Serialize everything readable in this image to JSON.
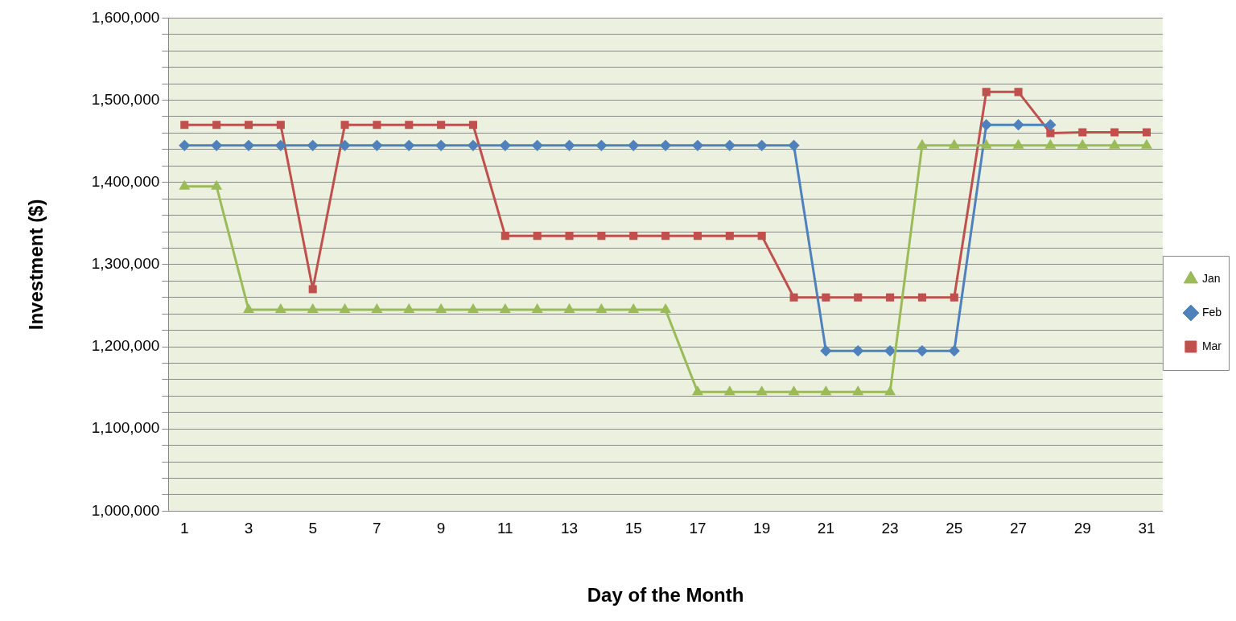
{
  "chart_data": {
    "type": "line",
    "xlabel": "Day of the Month",
    "ylabel": "Investment ($)",
    "x": [
      1,
      2,
      3,
      4,
      5,
      6,
      7,
      8,
      9,
      10,
      11,
      12,
      13,
      14,
      15,
      16,
      17,
      18,
      19,
      20,
      21,
      22,
      23,
      24,
      25,
      26,
      27,
      28,
      29,
      30,
      31
    ],
    "xlim": [
      0.5,
      31.5
    ],
    "xticks": [
      1,
      3,
      5,
      7,
      9,
      11,
      13,
      15,
      17,
      19,
      21,
      23,
      25,
      27,
      29,
      31
    ],
    "series": [
      {
        "name": "Jan",
        "color": "#9bbb59",
        "marker": "triangle",
        "values": [
          1395000,
          1395000,
          1245000,
          1245000,
          1245000,
          1245000,
          1245000,
          1245000,
          1245000,
          1245000,
          1245000,
          1245000,
          1245000,
          1245000,
          1245000,
          1245000,
          1145000,
          1145000,
          1145000,
          1145000,
          1145000,
          1145000,
          1145000,
          1445000,
          1445000,
          1445000,
          1445000,
          1445000,
          1445000,
          1445000,
          1445000
        ]
      },
      {
        "name": "Feb",
        "color": "#4f81bd",
        "marker": "diamond",
        "values": [
          1445000,
          1445000,
          1445000,
          1445000,
          1445000,
          1445000,
          1445000,
          1445000,
          1445000,
          1445000,
          1445000,
          1445000,
          1445000,
          1445000,
          1445000,
          1445000,
          1445000,
          1445000,
          1445000,
          1445000,
          1195000,
          1195000,
          1195000,
          1195000,
          1195000,
          1470000,
          1470000,
          1470000,
          null,
          null,
          null
        ]
      },
      {
        "name": "Mar",
        "color": "#c0504d",
        "marker": "square",
        "values": [
          1470000,
          1470000,
          1470000,
          1470000,
          1270000,
          1470000,
          1470000,
          1470000,
          1470000,
          1470000,
          1335000,
          1335000,
          1335000,
          1335000,
          1335000,
          1335000,
          1335000,
          1335000,
          1335000,
          1260000,
          1260000,
          1260000,
          1260000,
          1260000,
          1260000,
          1510000,
          1510000,
          1460000,
          1461000,
          1461000,
          1461000
        ]
      }
    ],
    "ylim": [
      1000000,
      1600000
    ],
    "yticks": [
      {
        "value": 1000000,
        "label": "1,000,000"
      },
      {
        "value": 1020000,
        "label": null
      },
      {
        "value": 1040000,
        "label": null
      },
      {
        "value": 1060000,
        "label": null
      },
      {
        "value": 1080000,
        "label": null
      },
      {
        "value": 1100000,
        "label": "1,100,000"
      },
      {
        "value": 1120000,
        "label": null
      },
      {
        "value": 1140000,
        "label": null
      },
      {
        "value": 1160000,
        "label": null
      },
      {
        "value": 1180000,
        "label": null
      },
      {
        "value": 1200000,
        "label": "1,200,000"
      },
      {
        "value": 1220000,
        "label": null
      },
      {
        "value": 1240000,
        "label": null
      },
      {
        "value": 1260000,
        "label": null
      },
      {
        "value": 1280000,
        "label": null
      },
      {
        "value": 1300000,
        "label": "1,300,000"
      },
      {
        "value": 1320000,
        "label": null
      },
      {
        "value": 1340000,
        "label": null
      },
      {
        "value": 1360000,
        "label": null
      },
      {
        "value": 1380000,
        "label": null
      },
      {
        "value": 1400000,
        "label": "1,400,000"
      },
      {
        "value": 1420000,
        "label": null
      },
      {
        "value": 1440000,
        "label": null
      },
      {
        "value": 1460000,
        "label": null
      },
      {
        "value": 1480000,
        "label": null
      },
      {
        "value": 1500000,
        "label": "1,500,000"
      },
      {
        "value": 1520000,
        "label": null
      },
      {
        "value": 1540000,
        "label": null
      },
      {
        "value": 1560000,
        "label": null
      },
      {
        "value": 1580000,
        "label": null
      },
      {
        "value": 1600000,
        "label": "1,600,000"
      }
    ],
    "grid": "y",
    "legend": "right",
    "line_style": "solid"
  }
}
